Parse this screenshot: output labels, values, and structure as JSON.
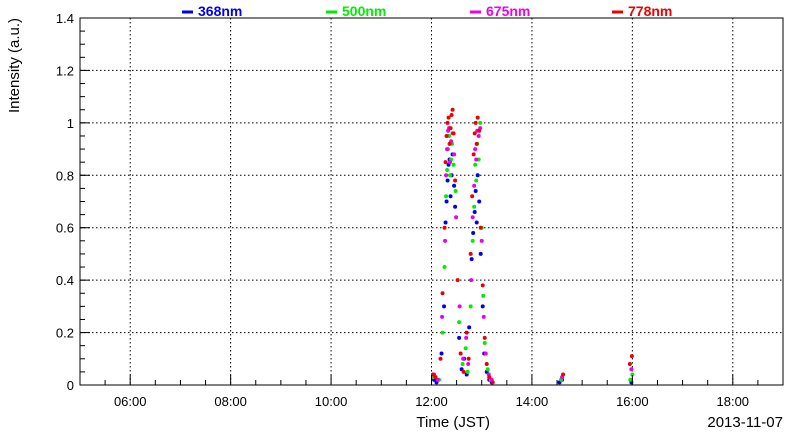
{
  "chart_data": {
    "type": "scatter",
    "xlabel": "Time (JST)",
    "ylabel": "Intensity (a.u.)",
    "date_label": "2013-11-07",
    "x_unit": "hours (JST)",
    "xlim": [
      5.0,
      19.0
    ],
    "ylim": [
      0,
      1.4
    ],
    "x_ticks": [
      6,
      8,
      10,
      12,
      14,
      16,
      18
    ],
    "x_tick_labels": [
      "06:00",
      "08:00",
      "10:00",
      "12:00",
      "14:00",
      "16:00",
      "18:00"
    ],
    "y_ticks": [
      0,
      0.2,
      0.4,
      0.6,
      0.8,
      1.0,
      1.2,
      1.4
    ],
    "y_tick_labels": [
      "0",
      "0.2",
      "0.4",
      "0.6",
      "0.8",
      "1",
      "1.2",
      "1.4"
    ],
    "grid": true,
    "legend_position": "top",
    "series": [
      {
        "name": "368nm",
        "color": "#0000ee",
        "points": [
          [
            12.05,
            0.02
          ],
          [
            12.1,
            0.01
          ],
          [
            12.2,
            0.12
          ],
          [
            12.25,
            0.3
          ],
          [
            12.28,
            0.62
          ],
          [
            12.3,
            0.7
          ],
          [
            12.32,
            0.78
          ],
          [
            12.34,
            0.84
          ],
          [
            12.36,
            0.86
          ],
          [
            12.38,
            0.72
          ],
          [
            12.4,
            0.8
          ],
          [
            12.42,
            0.88
          ],
          [
            12.45,
            0.76
          ],
          [
            12.47,
            0.68
          ],
          [
            12.55,
            0.18
          ],
          [
            12.6,
            0.06
          ],
          [
            12.65,
            0.1
          ],
          [
            12.7,
            0.04
          ],
          [
            12.75,
            0.22
          ],
          [
            12.8,
            0.48
          ],
          [
            12.83,
            0.58
          ],
          [
            12.86,
            0.66
          ],
          [
            12.88,
            0.74
          ],
          [
            12.9,
            0.62
          ],
          [
            12.92,
            0.8
          ],
          [
            12.95,
            0.7
          ],
          [
            12.98,
            0.5
          ],
          [
            13.02,
            0.3
          ],
          [
            13.05,
            0.12
          ],
          [
            13.1,
            0.05
          ],
          [
            13.15,
            0.02
          ],
          [
            13.2,
            0.01
          ],
          [
            14.55,
            0.01
          ],
          [
            14.6,
            0.02
          ],
          [
            15.98,
            0.01
          ]
        ]
      },
      {
        "name": "500nm",
        "color": "#00ee00",
        "points": [
          [
            12.05,
            0.03
          ],
          [
            12.15,
            0.02
          ],
          [
            12.22,
            0.2
          ],
          [
            12.26,
            0.45
          ],
          [
            12.29,
            0.72
          ],
          [
            12.31,
            0.82
          ],
          [
            12.33,
            0.9
          ],
          [
            12.35,
            0.95
          ],
          [
            12.37,
            0.8
          ],
          [
            12.39,
            0.86
          ],
          [
            12.41,
            0.92
          ],
          [
            12.44,
            0.84
          ],
          [
            12.48,
            0.74
          ],
          [
            12.55,
            0.24
          ],
          [
            12.62,
            0.08
          ],
          [
            12.68,
            0.14
          ],
          [
            12.72,
            0.05
          ],
          [
            12.78,
            0.3
          ],
          [
            12.82,
            0.55
          ],
          [
            12.85,
            0.68
          ],
          [
            12.87,
            0.84
          ],
          [
            12.89,
            0.78
          ],
          [
            12.91,
            0.92
          ],
          [
            12.94,
            0.86
          ],
          [
            12.97,
            1.0
          ],
          [
            13.0,
            0.6
          ],
          [
            13.03,
            0.34
          ],
          [
            13.06,
            0.16
          ],
          [
            13.12,
            0.06
          ],
          [
            13.18,
            0.02
          ],
          [
            14.58,
            0.02
          ],
          [
            15.96,
            0.02
          ],
          [
            16.0,
            0.04
          ]
        ]
      },
      {
        "name": "675nm",
        "color": "#ee00ee",
        "points": [
          [
            12.05,
            0.04
          ],
          [
            12.12,
            0.02
          ],
          [
            12.21,
            0.26
          ],
          [
            12.27,
            0.55
          ],
          [
            12.29,
            0.8
          ],
          [
            12.31,
            0.9
          ],
          [
            12.33,
            0.97
          ],
          [
            12.35,
            0.98
          ],
          [
            12.37,
            0.85
          ],
          [
            12.39,
            0.93
          ],
          [
            12.42,
            0.96
          ],
          [
            12.45,
            0.88
          ],
          [
            12.49,
            0.64
          ],
          [
            12.56,
            0.3
          ],
          [
            12.63,
            0.1
          ],
          [
            12.69,
            0.18
          ],
          [
            12.73,
            0.08
          ],
          [
            12.79,
            0.4
          ],
          [
            12.82,
            0.64
          ],
          [
            12.85,
            0.76
          ],
          [
            12.87,
            0.9
          ],
          [
            12.89,
            0.86
          ],
          [
            12.91,
            0.97
          ],
          [
            12.94,
            0.95
          ],
          [
            12.97,
            0.98
          ],
          [
            13.0,
            0.55
          ],
          [
            13.04,
            0.26
          ],
          [
            13.08,
            0.12
          ],
          [
            13.14,
            0.04
          ],
          [
            13.2,
            0.02
          ],
          [
            14.6,
            0.03
          ],
          [
            15.98,
            0.06
          ]
        ]
      },
      {
        "name": "778nm",
        "color": "#ee0000",
        "points": [
          [
            12.03,
            0.04
          ],
          [
            12.08,
            0.03
          ],
          [
            12.18,
            0.1
          ],
          [
            12.22,
            0.35
          ],
          [
            12.26,
            0.6
          ],
          [
            12.28,
            0.85
          ],
          [
            12.3,
            0.95
          ],
          [
            12.32,
            1.0
          ],
          [
            12.34,
            1.02
          ],
          [
            12.36,
            0.92
          ],
          [
            12.38,
            0.98
          ],
          [
            12.4,
            1.03
          ],
          [
            12.42,
            1.05
          ],
          [
            12.44,
            0.96
          ],
          [
            12.47,
            0.78
          ],
          [
            12.52,
            0.4
          ],
          [
            12.58,
            0.12
          ],
          [
            12.64,
            0.05
          ],
          [
            12.7,
            0.2
          ],
          [
            12.74,
            0.1
          ],
          [
            12.78,
            0.5
          ],
          [
            12.81,
            0.72
          ],
          [
            12.84,
            0.88
          ],
          [
            12.86,
            0.96
          ],
          [
            12.88,
            1.0
          ],
          [
            12.9,
            0.92
          ],
          [
            12.92,
            1.02
          ],
          [
            12.95,
            0.97
          ],
          [
            12.98,
            0.6
          ],
          [
            13.02,
            0.38
          ],
          [
            13.06,
            0.18
          ],
          [
            13.1,
            0.08
          ],
          [
            13.15,
            0.03
          ],
          [
            13.22,
            0.01
          ],
          [
            14.62,
            0.04
          ],
          [
            15.95,
            0.08
          ],
          [
            15.99,
            0.11
          ]
        ]
      }
    ]
  }
}
